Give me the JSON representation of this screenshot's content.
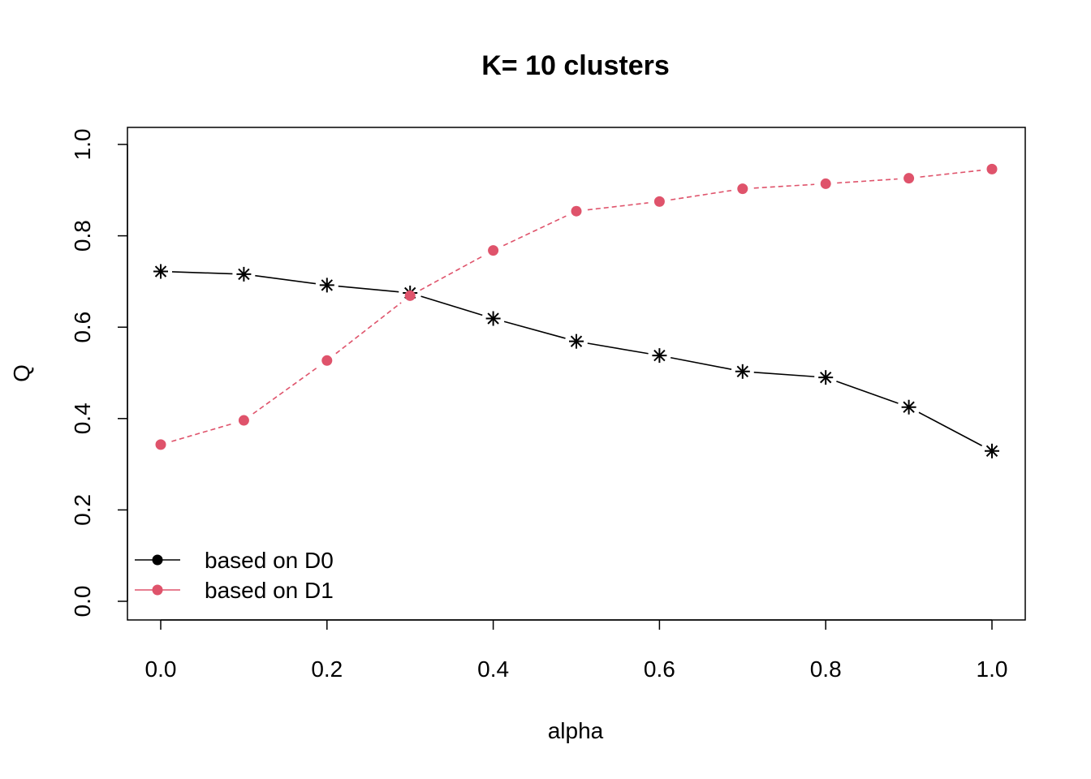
{
  "chart_data": {
    "type": "line",
    "title": "K= 10 clusters",
    "xlabel": "alpha",
    "ylabel": "Q",
    "x": [
      0.0,
      0.1,
      0.2,
      0.3,
      0.4,
      0.5,
      0.6,
      0.7,
      0.8,
      0.9,
      1.0
    ],
    "xlim": [
      0.0,
      1.0
    ],
    "ylim": [
      0.0,
      1.0
    ],
    "xticks": [
      "0.0",
      "0.2",
      "0.4",
      "0.6",
      "0.8",
      "1.0"
    ],
    "yticks": [
      "0.0",
      "0.2",
      "0.4",
      "0.6",
      "0.8",
      "1.0"
    ],
    "grid": false,
    "legend_position": "bottom-left",
    "series": [
      {
        "name": "based on D0",
        "color": "#000000",
        "marker": "asterisk",
        "legend_marker": "filled-circle",
        "line_style": "solid",
        "values": [
          0.722,
          0.716,
          0.692,
          0.675,
          0.619,
          0.569,
          0.538,
          0.503,
          0.49,
          0.425,
          0.329
        ]
      },
      {
        "name": "based on D1",
        "color": "#DF536B",
        "marker": "filled-circle",
        "legend_marker": "filled-circle",
        "line_style": "dashed",
        "values": [
          0.343,
          0.396,
          0.527,
          0.669,
          0.768,
          0.854,
          0.875,
          0.903,
          0.914,
          0.926,
          0.946
        ]
      }
    ]
  }
}
